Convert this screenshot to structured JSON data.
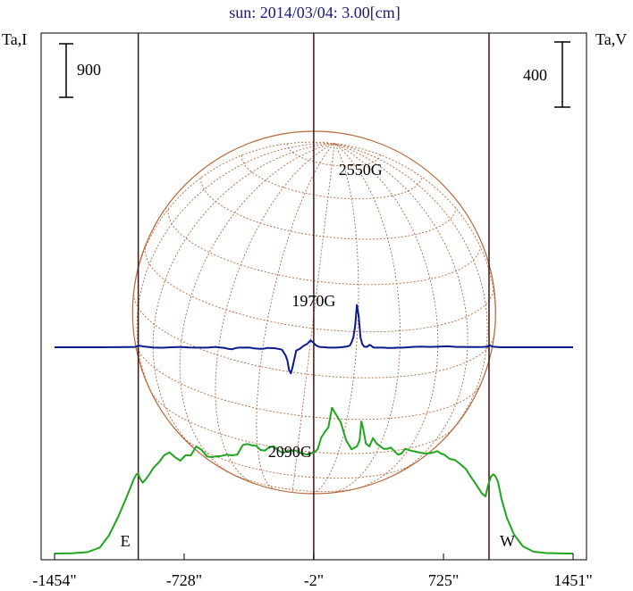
{
  "chart_data": {
    "type": "line",
    "title": "sun: 2014/03/04: 3.00[cm]",
    "left_axis_label": "Ta,I",
    "right_axis_label": "Ta,V",
    "left_scale_bar": "900",
    "right_scale_bar": "400",
    "x_ticks": [
      {
        "value": -1454,
        "label": "-1454\""
      },
      {
        "value": -728,
        "label": "-728\""
      },
      {
        "value": -2,
        "label": "-2\""
      },
      {
        "value": 725,
        "label": "725\""
      },
      {
        "value": 1451,
        "label": "1451\""
      }
    ],
    "xlim": [
      -1454,
      1451
    ],
    "limb_markers": [
      {
        "x": -985,
        "label": "E"
      },
      {
        "x": -2,
        "label": ""
      },
      {
        "x": 980,
        "label": "W"
      }
    ],
    "annotations": [
      {
        "text": "2550G",
        "x": 260,
        "y_norm": 0.82
      },
      {
        "text": "1970G",
        "x": -2,
        "y_norm": 0.52
      },
      {
        "text": "2090G",
        "x": -135,
        "y_norm": -0.05
      }
    ],
    "colors": {
      "stokes_i": "#1fa51f",
      "stokes_v": "#0a1a8c",
      "limb_lines": "#3c1414",
      "solar_disk": "#b5683c",
      "title": "#1a1a7a",
      "text": "#000000"
    },
    "series": [
      {
        "name": "Stokes I",
        "x": [
          -1454,
          -1360,
          -1270,
          -1200,
          -1150,
          -1100,
          -1060,
          -1030,
          -1010,
          -995,
          -985,
          -975,
          -960,
          -945,
          -925,
          -900,
          -870,
          -840,
          -810,
          -780,
          -750,
          -720,
          -690,
          -660,
          -630,
          -600,
          -575,
          -550,
          -520,
          -490,
          -460,
          -430,
          -400,
          -375,
          -350,
          -325,
          -300,
          -275,
          -250,
          -225,
          -200,
          -175,
          -150,
          -125,
          -100,
          -80,
          -60,
          -40,
          -20,
          0,
          20,
          40,
          60,
          80,
          100,
          120,
          150,
          180,
          210,
          240,
          255,
          265,
          275,
          290,
          310,
          330,
          350,
          370,
          390,
          410,
          430,
          450,
          470,
          490,
          510,
          540,
          570,
          600,
          630,
          660,
          690,
          710,
          730,
          760,
          790,
          820,
          850,
          880,
          910,
          940,
          960,
          975,
          990,
          1005,
          1015,
          1030,
          1050,
          1080,
          1120,
          1170,
          1230,
          1300,
          1380,
          1451
        ],
        "y": [
          0,
          4,
          22,
          100,
          300,
          600,
          880,
          1100,
          1250,
          1330,
          1340,
          1260,
          1190,
          1240,
          1320,
          1440,
          1530,
          1650,
          1700,
          1620,
          1560,
          1650,
          1650,
          1800,
          1740,
          1630,
          1620,
          1630,
          1640,
          1660,
          1650,
          1660,
          1820,
          1840,
          1820,
          1810,
          1740,
          1730,
          1790,
          1800,
          1730,
          1690,
          1720,
          1730,
          1730,
          1690,
          1680,
          1660,
          1680,
          1700,
          1750,
          1950,
          2040,
          2120,
          2450,
          2350,
          2200,
          1900,
          1750,
          1800,
          1900,
          2220,
          2100,
          1850,
          1800,
          1940,
          1850,
          1800,
          1760,
          1760,
          1780,
          1720,
          1660,
          1680,
          1760,
          1730,
          1710,
          1690,
          1680,
          1690,
          1720,
          1680,
          1660,
          1590,
          1570,
          1500,
          1420,
          1280,
          1150,
          1010,
          960,
          1150,
          1290,
          1330,
          1300,
          1210,
          920,
          600,
          320,
          120,
          30,
          8,
          2,
          0
        ]
      },
      {
        "name": "Stokes V",
        "x": [
          -1454,
          -1200,
          -1050,
          -1000,
          -985,
          -970,
          -950,
          -900,
          -850,
          -800,
          -750,
          -700,
          -650,
          -600,
          -550,
          -520,
          -500,
          -480,
          -460,
          -440,
          -420,
          -400,
          -380,
          -360,
          -340,
          -320,
          -300,
          -280,
          -260,
          -240,
          -220,
          -200,
          -180,
          -160,
          -150,
          -140,
          -130,
          -120,
          -100,
          -80,
          -60,
          -40,
          -20,
          -5,
          10,
          30,
          60,
          80,
          100,
          120,
          150,
          180,
          200,
          210,
          220,
          230,
          240,
          250,
          260,
          270,
          280,
          290,
          300,
          310,
          320,
          330,
          340,
          350,
          370,
          390,
          410,
          440,
          470,
          500,
          550,
          600,
          650,
          700,
          750,
          800,
          850,
          900,
          950,
          970,
          980,
          990,
          1000,
          1020,
          1050,
          1100,
          1200,
          1300,
          1451
        ],
        "y": [
          0,
          0,
          1,
          2,
          10,
          8,
          4,
          -1,
          -3,
          0,
          2,
          -1,
          -2,
          -2,
          2,
          -2,
          -4,
          -10,
          -12,
          -5,
          -2,
          -2,
          -1,
          -2,
          -6,
          -8,
          -10,
          -8,
          -4,
          -5,
          -6,
          -10,
          -15,
          -50,
          -80,
          -140,
          -160,
          -120,
          -20,
          -10,
          8,
          20,
          42,
          30,
          12,
          2,
          0,
          -2,
          -2,
          -2,
          0,
          4,
          10,
          30,
          60,
          130,
          260,
          190,
          60,
          20,
          5,
          2,
          5,
          15,
          10,
          0,
          -2,
          -2,
          -2,
          -2,
          -4,
          -4,
          -2,
          -2,
          2,
          4,
          2,
          4,
          6,
          2,
          2,
          1,
          2,
          4,
          12,
          8,
          4,
          2,
          0,
          0,
          0,
          0,
          0
        ]
      }
    ]
  }
}
